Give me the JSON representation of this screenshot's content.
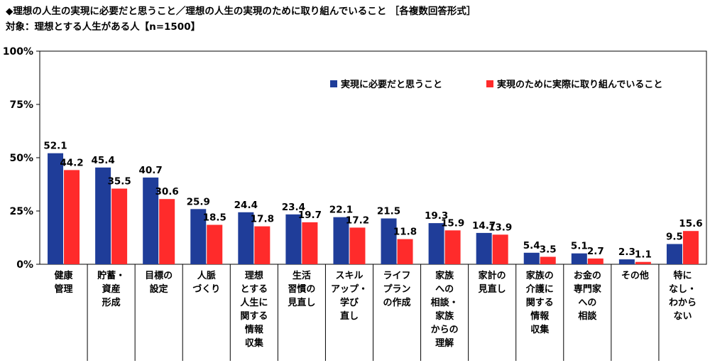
{
  "header": {
    "title": "◆理想の人生の実現に必要だと思うこと／理想の人生の実現のために取り組んでいること ［各複数回答形式］",
    "subtitle": "対象：理想とする人生がある人【n=1500】"
  },
  "chart_data": {
    "type": "bar",
    "ylim": [
      0,
      100
    ],
    "yticks": [
      "0%",
      "25%",
      "50%",
      "75%",
      "100%"
    ],
    "legend_position": "top-right",
    "grid": false,
    "categories": [
      [
        "健康",
        "管理"
      ],
      [
        "貯蓄・",
        "資産",
        "形成"
      ],
      [
        "目標の",
        "設定"
      ],
      [
        "人脈",
        "づくり"
      ],
      [
        "理想",
        "とする",
        "人生に",
        "関する",
        "情報",
        "収集"
      ],
      [
        "生活",
        "習慣の",
        "見直し"
      ],
      [
        "スキル",
        "アップ・",
        "学び",
        "直し"
      ],
      [
        "ライフ",
        "プラン",
        "の作成"
      ],
      [
        "家族",
        "への",
        "相談・",
        "家族",
        "からの",
        "理解"
      ],
      [
        "家計の",
        "見直し"
      ],
      [
        "家族の",
        "介護に",
        "関する",
        "情報",
        "収集"
      ],
      [
        "お金の",
        "専門家",
        "への",
        "相談"
      ],
      [
        "その他"
      ],
      [
        "特に",
        "なし・",
        "わから",
        "ない"
      ]
    ],
    "series": [
      {
        "name": "実現に必要だと思うこと",
        "color": "#1f3d99",
        "values": [
          52.1,
          45.4,
          40.7,
          25.9,
          24.4,
          23.4,
          22.1,
          21.5,
          19.3,
          14.7,
          5.4,
          5.1,
          2.3,
          9.5
        ]
      },
      {
        "name": "実現のために実際に取り組んでいること",
        "color": "#ff2b2b",
        "values": [
          44.2,
          35.5,
          30.6,
          18.5,
          17.8,
          19.7,
          17.2,
          11.8,
          15.9,
          13.9,
          3.5,
          2.7,
          1.1,
          15.6
        ]
      }
    ]
  }
}
